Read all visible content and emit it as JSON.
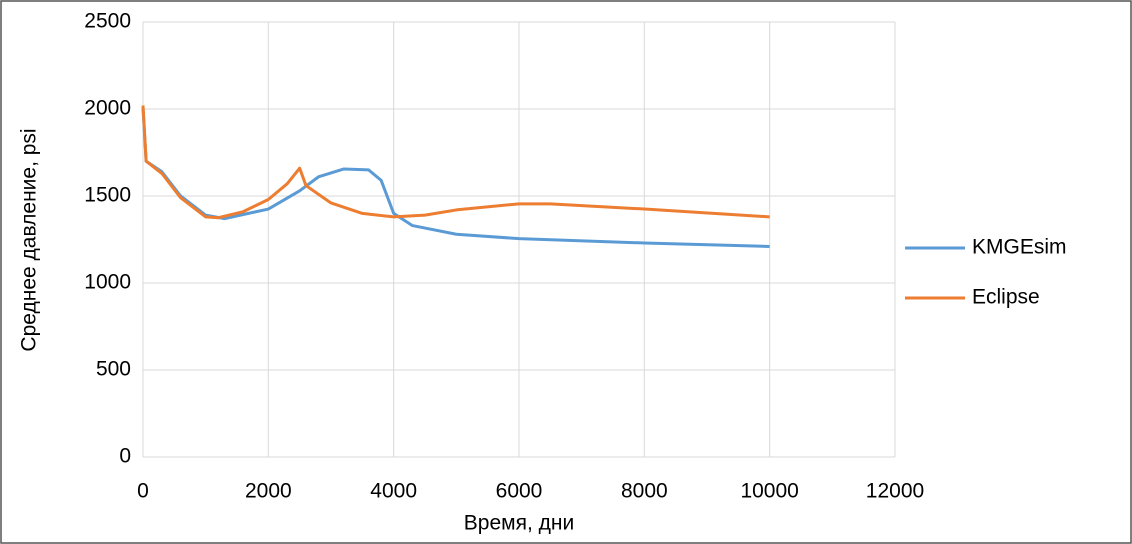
{
  "chart_data": {
    "type": "line",
    "x_label": "Время, дни",
    "y_label": "Среднее давление, psi",
    "xlim": [
      0,
      12000
    ],
    "xticks": [
      0,
      2000,
      4000,
      6000,
      8000,
      10000,
      12000
    ],
    "ylim": [
      0,
      2500
    ],
    "yticks": [
      0,
      500,
      1000,
      1500,
      2000,
      2500
    ],
    "grid": true,
    "legend": "right",
    "series": [
      {
        "name": "KMGEsim",
        "color": "#5b9bd5",
        "x": [
          0,
          50,
          300,
          600,
          1000,
          1300,
          2000,
          2500,
          2800,
          3200,
          3600,
          3800,
          4000,
          4300,
          5000,
          6000,
          8000,
          10000
        ],
        "values": [
          2006,
          1700,
          1640,
          1500,
          1390,
          1370,
          1425,
          1530,
          1610,
          1655,
          1650,
          1590,
          1400,
          1330,
          1280,
          1255,
          1230,
          1210
        ]
      },
      {
        "name": "Eclipse",
        "color": "#ed7d31",
        "x": [
          0,
          50,
          300,
          600,
          1000,
          1200,
          1600,
          2000,
          2300,
          2500,
          2600,
          3000,
          3500,
          4000,
          4500,
          5000,
          6000,
          6500,
          8000,
          10000
        ],
        "values": [
          2020,
          1700,
          1630,
          1490,
          1380,
          1375,
          1410,
          1480,
          1570,
          1660,
          1560,
          1460,
          1400,
          1380,
          1390,
          1420,
          1455,
          1455,
          1425,
          1380
        ]
      }
    ]
  }
}
